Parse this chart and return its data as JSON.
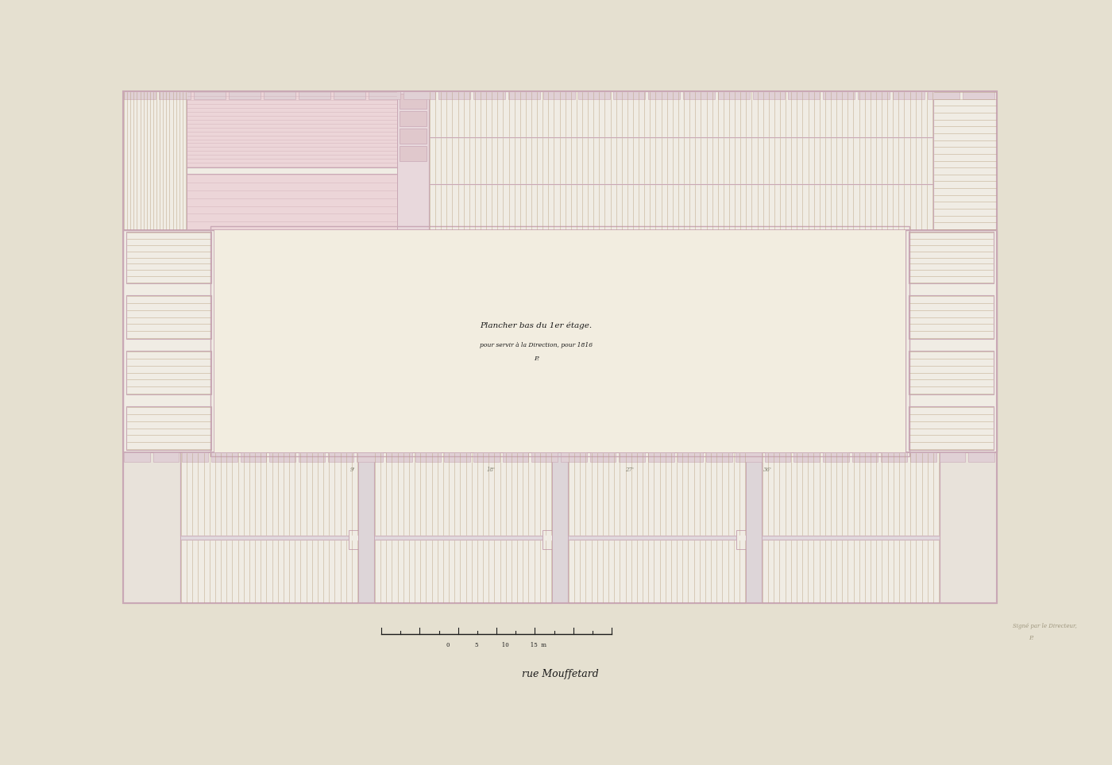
{
  "bg_color": "#e5e0d0",
  "paper_color": "#f2ede0",
  "wall_color": "#c9a8b5",
  "beam_line_color": "#b8a080",
  "pink_fill": "#ecd5d8",
  "beam_bg": "#f0ece4",
  "courtyard_color": "#f2ede0",
  "title_text": "Plancher bas du 1er étage.",
  "subtitle_text": "pour servir à la Direction, pour 1816",
  "bottom_label": "rue Mouffetard"
}
